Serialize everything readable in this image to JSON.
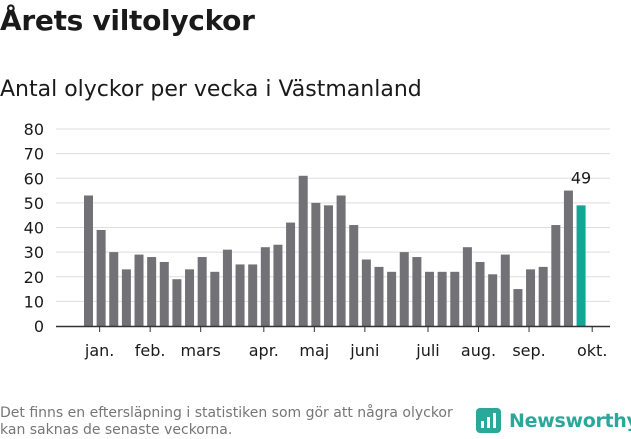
{
  "title": "Årets viltolyckor",
  "subtitle": "Antal olyckor per vecka i Västmanland",
  "footnote": "Det finns en eftersläpning i statistiken som gör att några olyckor kan saknas de senaste veckorna.",
  "brand": {
    "name": "Newsworthy",
    "icon": "newsworthy-logo-icon"
  },
  "colors": {
    "bar": "#727176",
    "highlight": "#13a697",
    "grid": "#dddddd",
    "axis": "#333333",
    "text": "#1a1a1a"
  },
  "chart_data": {
    "type": "bar",
    "title": "Antal olyckor per vecka i Västmanland",
    "xlabel": "",
    "ylabel": "",
    "ylim": [
      0,
      80
    ],
    "yticks": [
      0,
      10,
      20,
      30,
      40,
      50,
      60,
      70,
      80
    ],
    "grid": true,
    "values": [
      53,
      39,
      30,
      23,
      29,
      28,
      26,
      19,
      23,
      28,
      22,
      31,
      25,
      25,
      32,
      33,
      42,
      61,
      50,
      49,
      53,
      41,
      27,
      24,
      22,
      30,
      28,
      22,
      22,
      22,
      32,
      26,
      21,
      29,
      15,
      23,
      24,
      41,
      55,
      49
    ],
    "highlight_index": 39,
    "highlight_label": "49",
    "month_labels": [
      {
        "label": "jan.",
        "index": 1
      },
      {
        "label": "feb.",
        "index": 5
      },
      {
        "label": "mars",
        "index": 9
      },
      {
        "label": "apr.",
        "index": 14
      },
      {
        "label": "maj",
        "index": 18
      },
      {
        "label": "juni",
        "index": 22
      },
      {
        "label": "juli",
        "index": 27
      },
      {
        "label": "aug.",
        "index": 31
      },
      {
        "label": "sep.",
        "index": 35
      },
      {
        "label": "okt.",
        "index": 40
      }
    ]
  }
}
